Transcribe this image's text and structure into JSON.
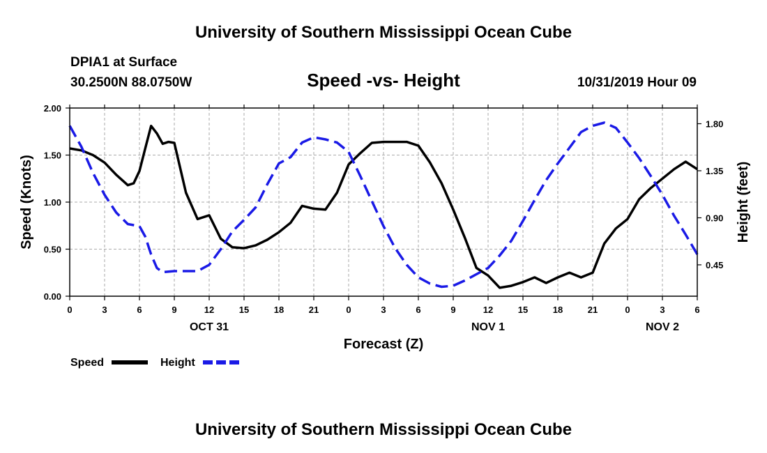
{
  "header": {
    "title_top": "University of Southern Mississippi Ocean Cube",
    "title_bottom": "University of Southern Mississippi Ocean Cube",
    "station": "DPIA1 at Surface",
    "location": "30.2500N 88.0750W",
    "timestamp": "10/31/2019 Hour 09"
  },
  "chart_data": {
    "type": "line",
    "title": "Speed -vs- Height",
    "xlabel": "Forecast (Z)",
    "ylabel": "Speed (Knots)",
    "y2label": "Height (feet)",
    "x_unit": "hours since Oct 31 00Z",
    "xlim": [
      0,
      54
    ],
    "ylim": [
      0,
      2.0
    ],
    "y2lim": [
      0.15,
      1.95
    ],
    "grid": true,
    "x_ticks": [
      {
        "x": 0,
        "label": "0"
      },
      {
        "x": 3,
        "label": "3"
      },
      {
        "x": 6,
        "label": "6"
      },
      {
        "x": 9,
        "label": "9"
      },
      {
        "x": 12,
        "label": "12"
      },
      {
        "x": 15,
        "label": "15"
      },
      {
        "x": 18,
        "label": "18"
      },
      {
        "x": 21,
        "label": "21"
      },
      {
        "x": 24,
        "label": "0"
      },
      {
        "x": 27,
        "label": "3"
      },
      {
        "x": 30,
        "label": "6"
      },
      {
        "x": 33,
        "label": "9"
      },
      {
        "x": 36,
        "label": "12"
      },
      {
        "x": 39,
        "label": "15"
      },
      {
        "x": 42,
        "label": "18"
      },
      {
        "x": 45,
        "label": "21"
      },
      {
        "x": 48,
        "label": "0"
      },
      {
        "x": 51,
        "label": "3"
      },
      {
        "x": 54,
        "label": "6"
      }
    ],
    "y_ticks": [
      {
        "v": 0.0,
        "label": "0.00"
      },
      {
        "v": 0.5,
        "label": "0.50"
      },
      {
        "v": 1.0,
        "label": "1.00"
      },
      {
        "v": 1.5,
        "label": "1.50"
      },
      {
        "v": 2.0,
        "label": "2.00"
      }
    ],
    "y2_ticks": [
      {
        "v": 0.45,
        "label": "0.45"
      },
      {
        "v": 0.9,
        "label": "0.90"
      },
      {
        "v": 1.35,
        "label": "1.35"
      },
      {
        "v": 1.8,
        "label": "1.80"
      }
    ],
    "date_labels": [
      {
        "x": 12,
        "label": "OCT 31"
      },
      {
        "x": 36,
        "label": "NOV 1"
      },
      {
        "x": 51,
        "label": "NOV 2"
      }
    ],
    "series": [
      {
        "name": "Speed",
        "axis": "left",
        "color": "#000000",
        "dash": "solid",
        "x": [
          0,
          1,
          2,
          3,
          4,
          5,
          5.5,
          6,
          6.5,
          7,
          7.5,
          8,
          8.5,
          9,
          10,
          11,
          12,
          13,
          14,
          15,
          16,
          17,
          18,
          19,
          20,
          21,
          22,
          23,
          24,
          25,
          26,
          27,
          28,
          29,
          30,
          31,
          32,
          33,
          34,
          35,
          36,
          37,
          38,
          39,
          40,
          41,
          42,
          43,
          44,
          45,
          46,
          47,
          48,
          49,
          50,
          51,
          52,
          53,
          54
        ],
        "values": [
          1.57,
          1.55,
          1.5,
          1.42,
          1.29,
          1.18,
          1.2,
          1.33,
          1.57,
          1.81,
          1.73,
          1.62,
          1.64,
          1.63,
          1.1,
          0.82,
          0.86,
          0.61,
          0.52,
          0.51,
          0.54,
          0.6,
          0.68,
          0.78,
          0.96,
          0.93,
          0.92,
          1.1,
          1.4,
          1.52,
          1.63,
          1.64,
          1.64,
          1.64,
          1.6,
          1.42,
          1.2,
          0.92,
          0.62,
          0.3,
          0.22,
          0.09,
          0.11,
          0.15,
          0.2,
          0.14,
          0.2,
          0.25,
          0.2,
          0.25,
          0.56,
          0.72,
          0.82,
          1.03,
          1.15,
          1.25,
          1.35,
          1.43,
          1.35
        ]
      },
      {
        "name": "Height",
        "axis": "right",
        "color": "#1a1ae6",
        "dash": "dashed",
        "x": [
          0,
          1,
          2,
          3,
          4,
          5,
          6,
          6.5,
          7,
          7.5,
          8,
          9,
          10,
          11,
          12,
          13,
          14,
          15,
          16,
          17,
          18,
          19,
          20,
          21,
          22,
          23,
          24,
          25,
          26,
          27,
          28,
          29,
          30,
          31,
          32,
          33,
          34,
          35,
          36,
          37,
          38,
          39,
          40,
          41,
          42,
          43,
          44,
          45,
          46,
          47,
          48,
          49,
          50,
          51,
          52,
          53,
          54
        ],
        "values": [
          1.78,
          1.58,
          1.33,
          1.12,
          0.95,
          0.84,
          0.82,
          0.72,
          0.55,
          0.42,
          0.38,
          0.39,
          0.39,
          0.39,
          0.45,
          0.6,
          0.77,
          0.88,
          1.0,
          1.22,
          1.42,
          1.48,
          1.62,
          1.67,
          1.65,
          1.62,
          1.53,
          1.3,
          1.06,
          0.82,
          0.61,
          0.45,
          0.33,
          0.27,
          0.24,
          0.25,
          0.3,
          0.36,
          0.42,
          0.54,
          0.68,
          0.87,
          1.07,
          1.26,
          1.42,
          1.57,
          1.72,
          1.78,
          1.81,
          1.76,
          1.62,
          1.47,
          1.3,
          1.12,
          0.92,
          0.74,
          0.55
        ]
      }
    ],
    "legend": [
      "Speed",
      "Height"
    ],
    "legend_position": "bottom-left"
  }
}
